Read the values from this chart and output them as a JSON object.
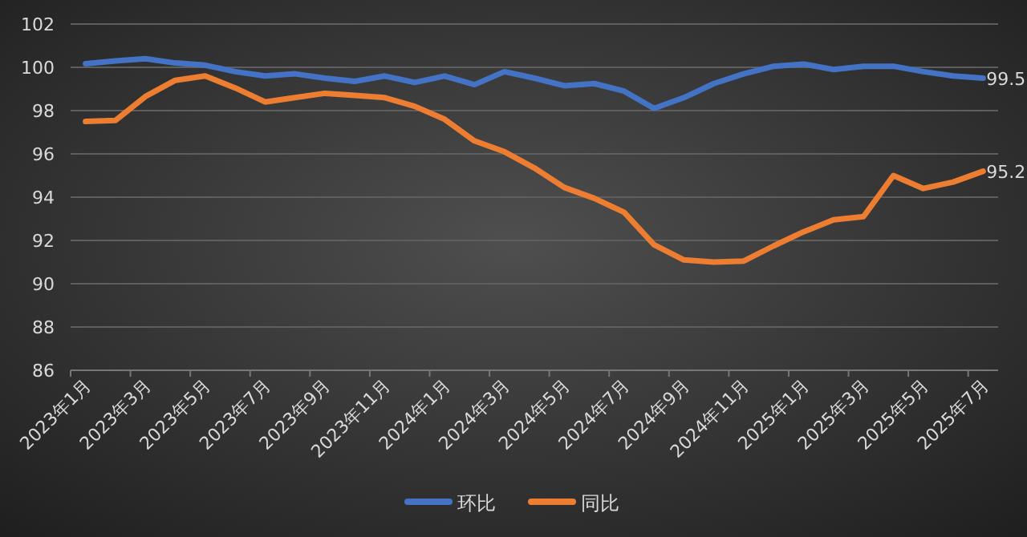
{
  "chart_data": {
    "type": "line",
    "categories": [
      "2023年1月",
      null,
      "2023年3月",
      null,
      "2023年5月",
      null,
      "2023年7月",
      null,
      "2023年9月",
      null,
      "2023年11月",
      null,
      "2024年1月",
      null,
      "2024年3月",
      null,
      "2024年5月",
      null,
      "2024年7月",
      null,
      "2024年9月",
      null,
      "2024年11月",
      null,
      "2025年1月",
      null,
      "2025年3月",
      null,
      "2025年5月",
      null,
      "2025年7月"
    ],
    "series": [
      {
        "name": "环比",
        "color": "#4472c4",
        "values": [
          100.17,
          100.3,
          100.4,
          100.2,
          100.1,
          99.8,
          99.6,
          99.7,
          99.5,
          99.35,
          99.6,
          99.3,
          99.6,
          99.2,
          99.8,
          99.5,
          99.15,
          99.25,
          98.9,
          98.1,
          98.6,
          99.25,
          99.7,
          100.05,
          100.15,
          99.9,
          100.05,
          100.05,
          99.8,
          99.6,
          99.5
        ],
        "value_labels": [
          null,
          null,
          null,
          null,
          null,
          null,
          null,
          null,
          null,
          null,
          null,
          null,
          null,
          null,
          null,
          null,
          null,
          null,
          null,
          null,
          null,
          null,
          null,
          null,
          null,
          null,
          null,
          null,
          null,
          null,
          "99.5"
        ]
      },
      {
        "name": "同比",
        "color": "#ed7d31",
        "values": [
          97.5,
          97.55,
          98.65,
          99.4,
          99.6,
          99.05,
          98.4,
          98.6,
          98.8,
          98.7,
          98.6,
          98.2,
          97.6,
          96.6,
          96.1,
          95.35,
          94.45,
          93.95,
          93.3,
          91.8,
          91.1,
          91.0,
          91.05,
          91.75,
          92.4,
          92.95,
          93.1,
          95.0,
          94.4,
          94.7,
          95.2
        ],
        "value_labels": [
          null,
          null,
          null,
          null,
          null,
          null,
          null,
          null,
          null,
          null,
          null,
          null,
          null,
          null,
          null,
          null,
          null,
          null,
          null,
          null,
          null,
          null,
          null,
          null,
          null,
          null,
          null,
          null,
          null,
          null,
          "95.2"
        ]
      }
    ],
    "ylim": [
      86,
      102
    ],
    "yticks": [
      86,
      88,
      90,
      92,
      94,
      96,
      98,
      100,
      102
    ],
    "grid": "y",
    "legend": "bottom"
  }
}
